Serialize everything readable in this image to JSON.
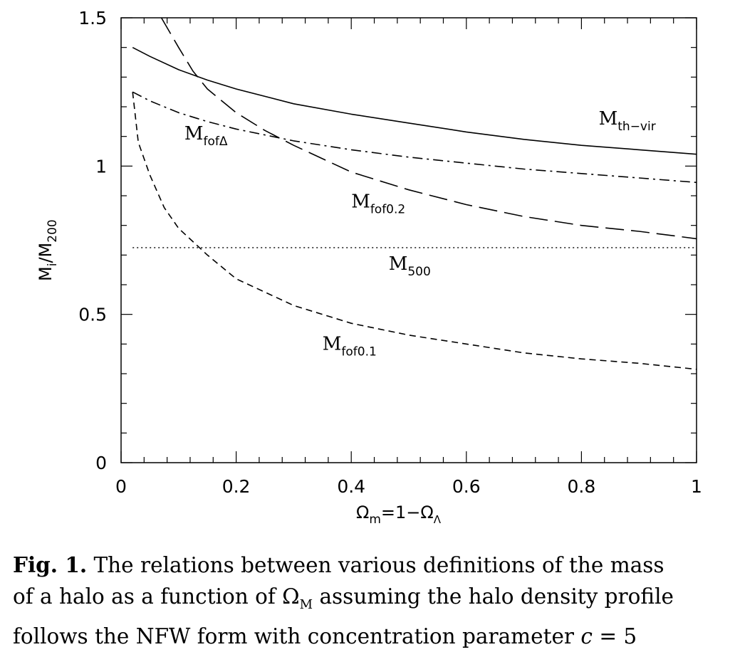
{
  "chart_data": {
    "type": "line",
    "xlabel": {
      "main": "Ω",
      "sub1": "m",
      "mid": "=1−Ω",
      "sub2": "Λ"
    },
    "ylabel": {
      "m1": "M",
      "sub1": "i",
      "slash": "/M",
      "sub2": "200"
    },
    "xlim": [
      0,
      1
    ],
    "ylim": [
      0,
      1.5
    ],
    "x_ticks": [
      "0",
      "0.2",
      "0.4",
      "0.6",
      "0.8",
      "1"
    ],
    "y_ticks": [
      "0",
      "0.5",
      "1",
      "1.5"
    ],
    "grid": false,
    "series": [
      {
        "name": "M_th-vir",
        "label_main": "M",
        "label_sub": "th−vir",
        "label_at": [
          0.83,
          1.14
        ],
        "style": "solid",
        "x": [
          0.02,
          0.05,
          0.1,
          0.15,
          0.2,
          0.3,
          0.4,
          0.5,
          0.6,
          0.7,
          0.8,
          0.9,
          1.0
        ],
        "y": [
          1.4,
          1.37,
          1.325,
          1.29,
          1.26,
          1.21,
          1.175,
          1.145,
          1.115,
          1.09,
          1.07,
          1.055,
          1.04
        ]
      },
      {
        "name": "M_fofΔ",
        "label_main": "M",
        "label_sub": "fofΔ",
        "label_at": [
          0.11,
          1.09
        ],
        "style": "dashdot",
        "x": [
          0.02,
          0.05,
          0.1,
          0.15,
          0.2,
          0.3,
          0.4,
          0.5,
          0.6,
          0.7,
          0.8,
          0.9,
          1.0
        ],
        "y": [
          1.25,
          1.22,
          1.18,
          1.15,
          1.125,
          1.085,
          1.055,
          1.03,
          1.01,
          0.99,
          0.975,
          0.96,
          0.945
        ]
      },
      {
        "name": "M_fof0.2",
        "label_main": "M",
        "label_sub": "fof0.2",
        "label_at": [
          0.4,
          0.86
        ],
        "style": "longdash",
        "x": [
          0.07,
          0.1,
          0.125,
          0.15,
          0.2,
          0.25,
          0.3,
          0.4,
          0.5,
          0.6,
          0.7,
          0.8,
          0.9,
          1.0
        ],
        "y": [
          1.5,
          1.4,
          1.32,
          1.26,
          1.18,
          1.12,
          1.07,
          0.98,
          0.92,
          0.87,
          0.83,
          0.8,
          0.78,
          0.755
        ]
      },
      {
        "name": "M_500",
        "label_main": "M",
        "label_sub": "500",
        "label_at": [
          0.465,
          0.65
        ],
        "style": "dotted",
        "x": [
          0.02,
          1.0
        ],
        "y": [
          0.725,
          0.725
        ]
      },
      {
        "name": "M_fof0.1",
        "label_main": "M",
        "label_sub": "fof0.1",
        "label_at": [
          0.35,
          0.38
        ],
        "style": "dashed",
        "x": [
          0.02,
          0.03,
          0.05,
          0.075,
          0.1,
          0.15,
          0.2,
          0.3,
          0.4,
          0.5,
          0.6,
          0.7,
          0.8,
          0.9,
          1.0
        ],
        "y": [
          1.25,
          1.08,
          0.97,
          0.86,
          0.79,
          0.7,
          0.62,
          0.53,
          0.47,
          0.43,
          0.4,
          0.37,
          0.35,
          0.335,
          0.315
        ]
      }
    ]
  },
  "caption": {
    "label": "Fig. 1.",
    "line1": " The relations between various definitions of the mass",
    "line2a": "of a halo as a function of Ω",
    "line2sub": "M",
    "line2b": " assuming the halo density profile",
    "line3a": "follows the NFW form with concentration parameter ",
    "line3c": "c",
    "line3b": " = 5"
  }
}
